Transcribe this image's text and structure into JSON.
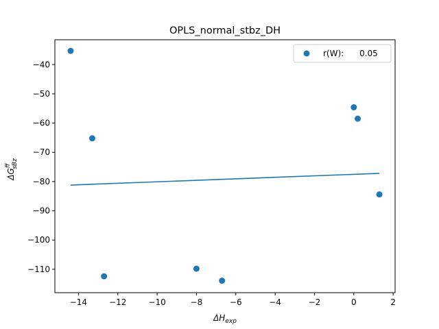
{
  "chart_data": {
    "type": "scatter",
    "title": "OPLS_normal_stbz_DH",
    "xlabel": {
      "base": "ΔH",
      "sub": "exp"
    },
    "ylabel": {
      "base": "ΔG",
      "sup": "ff",
      "sub": "sBz"
    },
    "xlim": [
      -15.2,
      2.1
    ],
    "ylim": [
      -118,
      -31.5
    ],
    "xticks": [
      -14,
      -12,
      -10,
      -8,
      -6,
      -4,
      -2,
      0,
      2
    ],
    "yticks": [
      -110,
      -100,
      -90,
      -80,
      -70,
      -60,
      -50,
      -40
    ],
    "points": [
      {
        "x": -14.4,
        "y": -35.3
      },
      {
        "x": -13.3,
        "y": -65.2
      },
      {
        "x": -12.7,
        "y": -112.4
      },
      {
        "x": -8.0,
        "y": -109.8
      },
      {
        "x": -6.7,
        "y": -113.9
      },
      {
        "x": 0.0,
        "y": -54.6
      },
      {
        "x": 0.2,
        "y": -58.5
      },
      {
        "x": 1.3,
        "y": -84.4
      }
    ],
    "fit_line": {
      "x": [
        -14.4,
        1.3
      ],
      "y": [
        -81.2,
        -77.2
      ]
    },
    "legend": {
      "label": "r(W):      0.05",
      "placement": "upper-right"
    },
    "grid": false,
    "color": "#1f77b4"
  }
}
